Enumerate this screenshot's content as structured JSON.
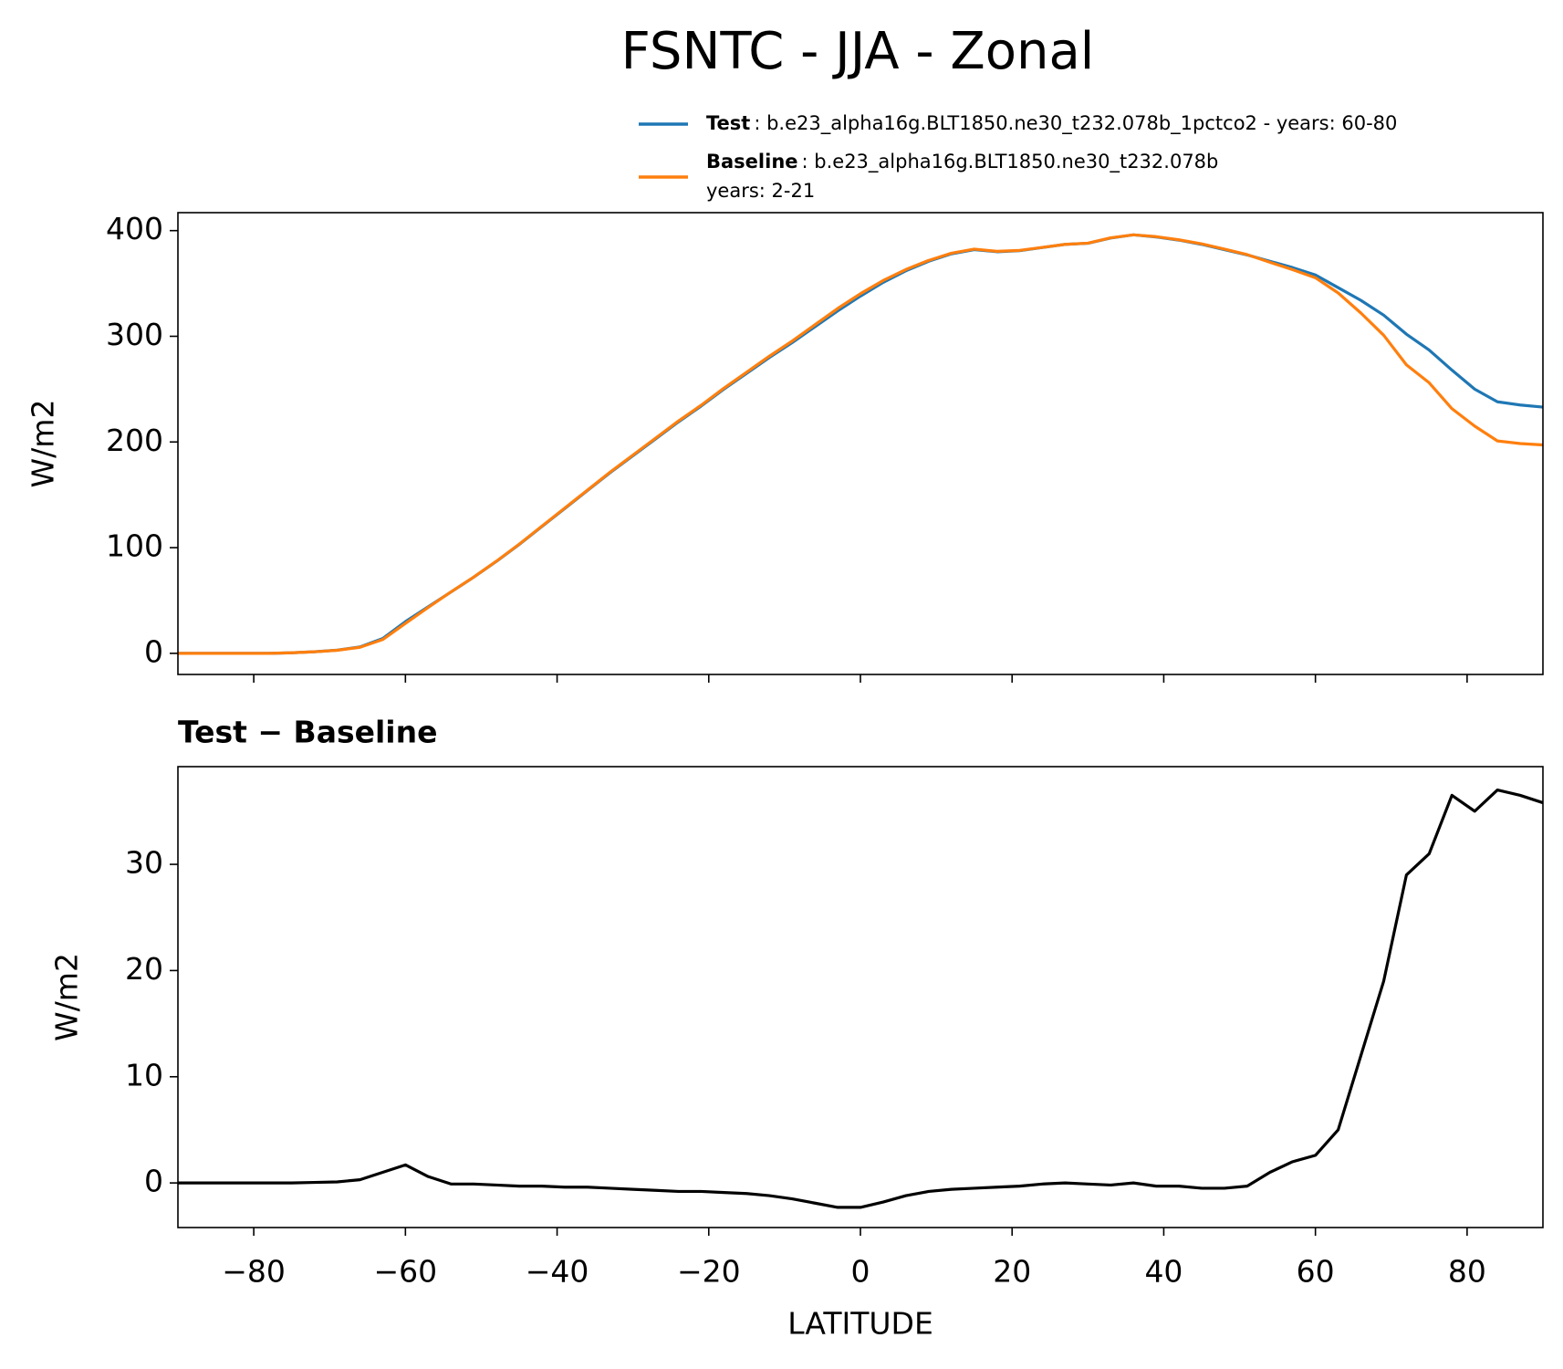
{
  "chart_data": [
    {
      "type": "line",
      "title": "FSNTC - JJA - Zonal",
      "ylabel": "W/m2",
      "x": [
        -90,
        -87,
        -84,
        -81,
        -78,
        -75,
        -72,
        -69,
        -66,
        -63,
        -60,
        -57,
        -54,
        -51,
        -48,
        -45,
        -42,
        -39,
        -36,
        -33,
        -30,
        -27,
        -24,
        -21,
        -18,
        -15,
        -12,
        -9,
        -6,
        -3,
        0,
        3,
        6,
        9,
        12,
        15,
        18,
        21,
        24,
        27,
        30,
        33,
        36,
        39,
        42,
        45,
        48,
        51,
        54,
        57,
        60,
        63,
        66,
        69,
        72,
        75,
        78,
        81,
        84,
        87,
        90
      ],
      "series": [
        {
          "name": "Test",
          "description": [
            ": b.e23_alpha16g.BLT1850.ne30_t232.078b_1pctco2 - years: 60-80"
          ],
          "color": "#1f77b4",
          "values": [
            0,
            0,
            0,
            0,
            0,
            0.5,
            1.5,
            3,
            6,
            14,
            30,
            44,
            58,
            72,
            87,
            103,
            120,
            137,
            154,
            171,
            187,
            203,
            219,
            234,
            250,
            265,
            280,
            294,
            309,
            324,
            338,
            351,
            362,
            371,
            378,
            382,
            380,
            381,
            384,
            387,
            388,
            393,
            396,
            394,
            391,
            387,
            382,
            377,
            371,
            365,
            358,
            346,
            334,
            320,
            302,
            287,
            268,
            250,
            238,
            235,
            233
          ]
        },
        {
          "name": "Baseline",
          "description": [
            ": b.e23_alpha16g.BLT1850.ne30_t232.078b",
            "years: 2-21"
          ],
          "color": "#ff7f0e",
          "values": [
            0,
            0,
            0,
            0,
            0,
            0.5,
            1.45,
            2.9,
            5.7,
            13,
            28.3,
            43.4,
            58.1,
            72.1,
            87.2,
            103.3,
            120.3,
            137.4,
            154.4,
            171.5,
            187.6,
            203.7,
            219.8,
            234.8,
            250.9,
            266,
            281.2,
            295.5,
            310.9,
            326.3,
            340.3,
            352.8,
            363.2,
            371.8,
            378.6,
            382.5,
            380.4,
            381.3,
            384.1,
            387,
            388.1,
            393.2,
            396,
            394.3,
            391.3,
            387.5,
            382.5,
            377.3,
            370,
            363,
            355.4,
            341,
            322,
            301,
            273,
            256,
            231.5,
            215,
            201,
            198.5,
            197.2
          ]
        }
      ],
      "xlim": [
        -90,
        90
      ],
      "xticks": [
        -80,
        -60,
        -40,
        -20,
        0,
        20,
        40,
        60,
        80
      ],
      "ylim": [
        -20,
        417
      ],
      "yticks": [
        0,
        100,
        200,
        300,
        400
      ]
    },
    {
      "type": "line",
      "title": "Test − Baseline",
      "ylabel": "W/m2",
      "xlabel": "LATITUDE",
      "x": [
        -90,
        -87,
        -84,
        -81,
        -78,
        -75,
        -72,
        -69,
        -66,
        -63,
        -60,
        -57,
        -54,
        -51,
        -48,
        -45,
        -42,
        -39,
        -36,
        -33,
        -30,
        -27,
        -24,
        -21,
        -18,
        -15,
        -12,
        -9,
        -6,
        -3,
        0,
        3,
        6,
        9,
        12,
        15,
        18,
        21,
        24,
        27,
        30,
        33,
        36,
        39,
        42,
        45,
        48,
        51,
        54,
        57,
        60,
        63,
        66,
        69,
        72,
        75,
        78,
        81,
        84,
        87,
        90
      ],
      "color": "#000000",
      "values": [
        0,
        0,
        0,
        0,
        0,
        0,
        0.05,
        0.1,
        0.3,
        1,
        1.7,
        0.6,
        -0.1,
        -0.1,
        -0.2,
        -0.3,
        -0.3,
        -0.4,
        -0.4,
        -0.5,
        -0.6,
        -0.7,
        -0.8,
        -0.8,
        -0.9,
        -1.0,
        -1.2,
        -1.5,
        -1.9,
        -2.3,
        -2.3,
        -1.8,
        -1.2,
        -0.8,
        -0.6,
        -0.5,
        -0.4,
        -0.3,
        -0.1,
        0,
        -0.1,
        -0.2,
        0,
        -0.3,
        -0.3,
        -0.5,
        -0.5,
        -0.3,
        1,
        2,
        2.6,
        5,
        12,
        19,
        29,
        31,
        36.5,
        35,
        37,
        36.5,
        35.8
      ],
      "xlim": [
        -90,
        90
      ],
      "xticks": [
        {
          "value": -80,
          "label": "−80"
        },
        {
          "value": -60,
          "label": "−60"
        },
        {
          "value": -40,
          "label": "−40"
        },
        {
          "value": -20,
          "label": "−20"
        },
        0,
        20,
        40,
        60,
        80
      ],
      "ylim": [
        -4.2,
        39.2
      ],
      "yticks": [
        0,
        10,
        20,
        30
      ]
    }
  ]
}
